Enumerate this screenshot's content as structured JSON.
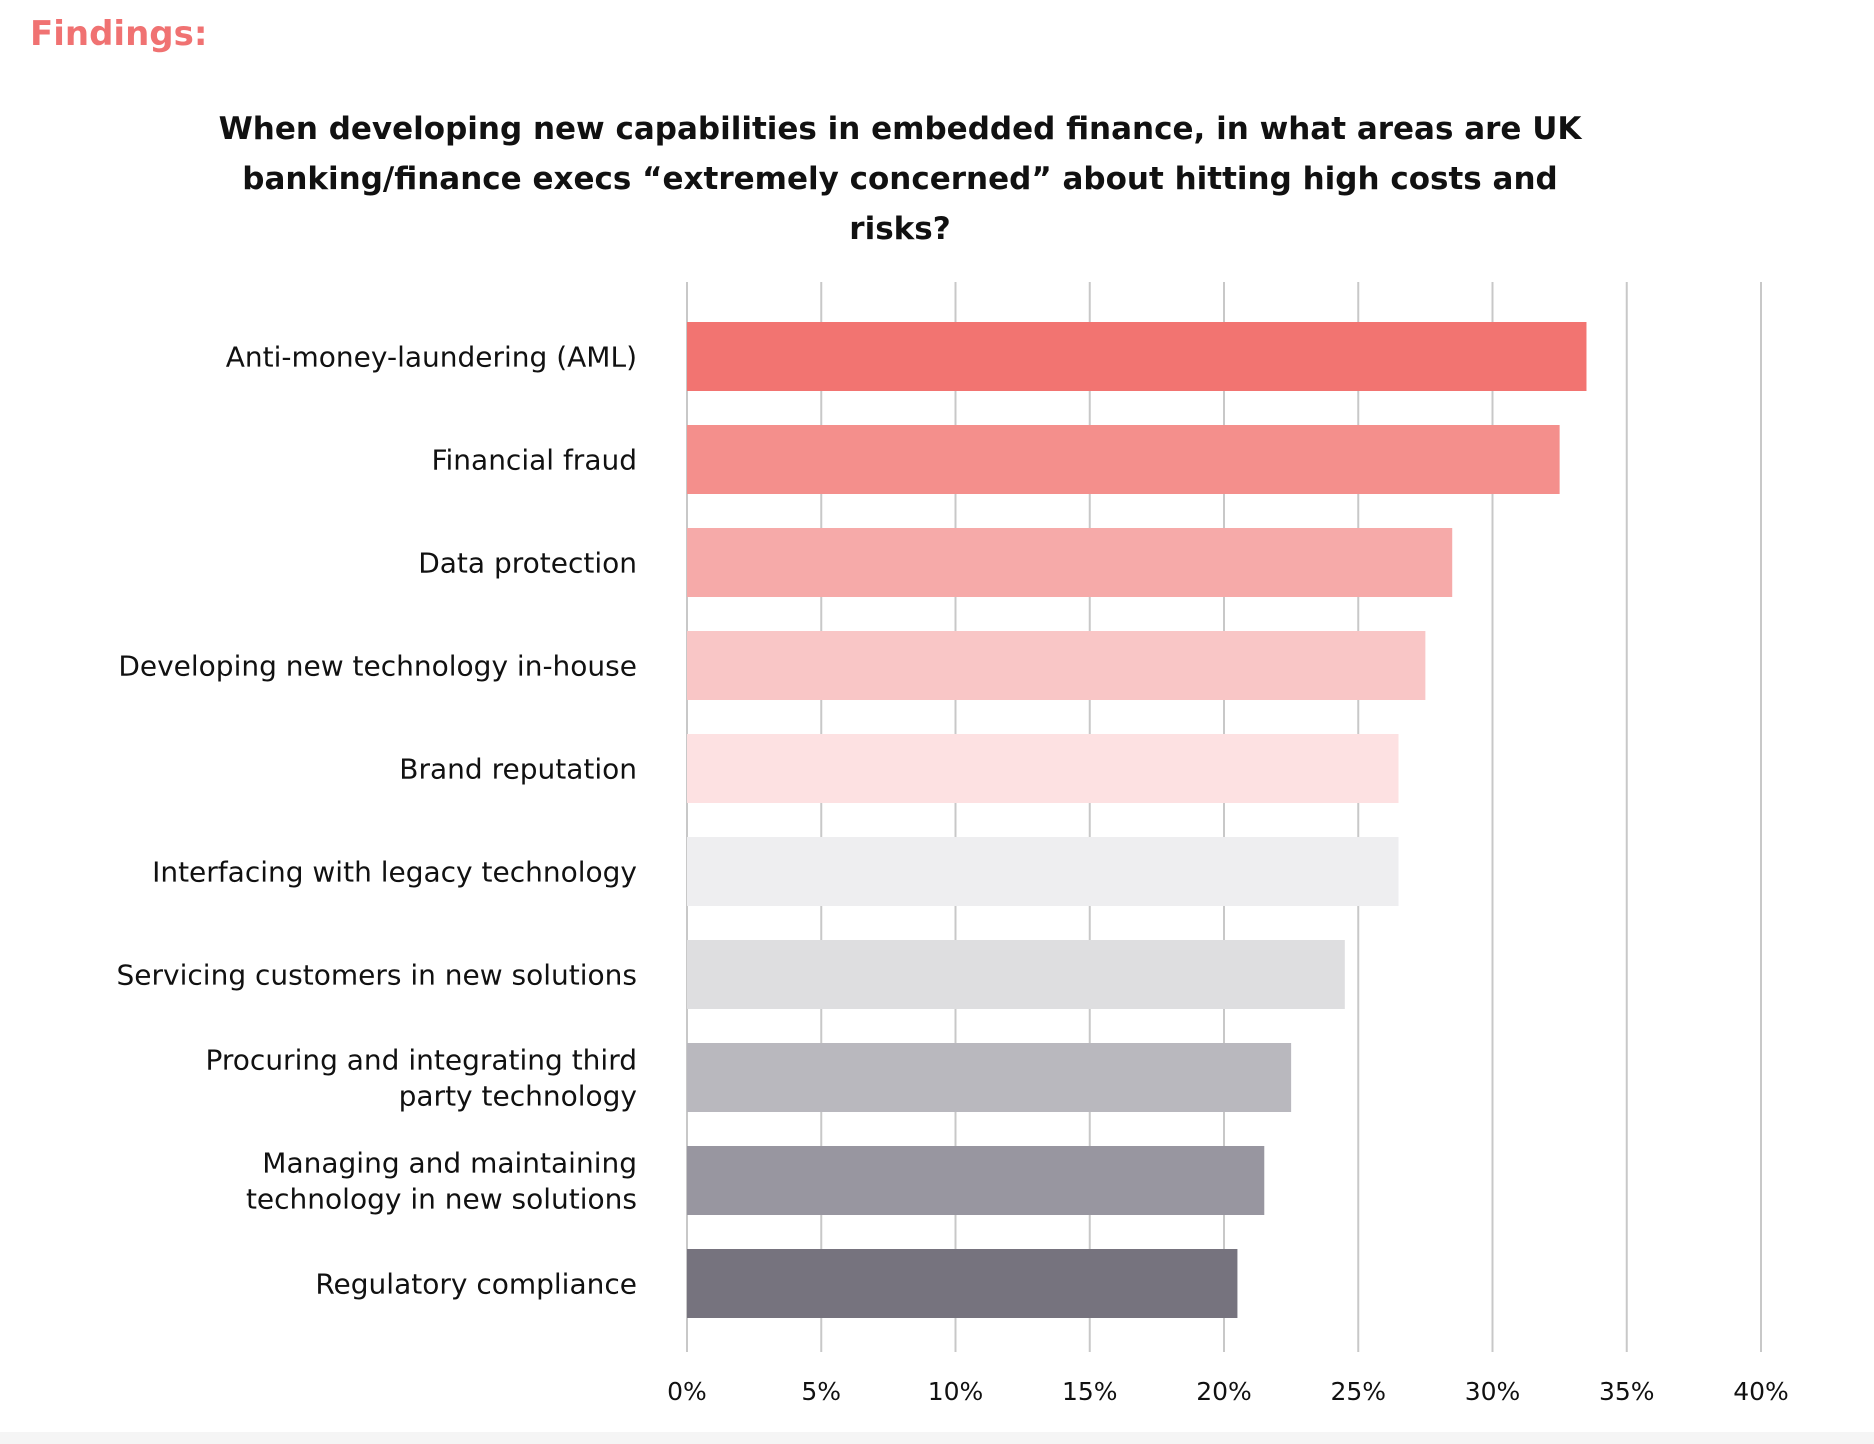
{
  "header": {
    "findings_label": "Findings:",
    "title_line1": "When developing new capabilities in embedded finance, in what areas are UK",
    "title_line2": "banking/finance execs “extremely concerned” about hitting high costs and risks?"
  },
  "chart_data": {
    "type": "bar",
    "orientation": "horizontal",
    "title": "When developing new capabilities in embedded finance, in what areas are UK banking/finance execs “extremely concerned” about hitting high costs and risks?",
    "categories": [
      [
        "Anti-money-laundering (AML)"
      ],
      [
        "Financial fraud"
      ],
      [
        "Data protection"
      ],
      [
        "Developing new technology in-house"
      ],
      [
        "Brand reputation"
      ],
      [
        "Interfacing with legacy technology"
      ],
      [
        "Servicing customers in new solutions"
      ],
      [
        "Procuring and integrating third",
        "party technology"
      ],
      [
        "Managing and maintaining",
        "technology in new solutions"
      ],
      [
        "Regulatory compliance"
      ]
    ],
    "values": [
      33.5,
      32.5,
      28.5,
      27.5,
      26.5,
      26.5,
      24.5,
      22.5,
      21.5,
      20.5
    ],
    "colors": [
      "#f27471",
      "#f48f8c",
      "#f6aaa9",
      "#f9c6c6",
      "#fde1e2",
      "#eeeef0",
      "#dedee0",
      "#b9b8be",
      "#9896a0",
      "#76737e"
    ],
    "xlim": [
      0,
      40
    ],
    "xticks": [
      0,
      5,
      10,
      15,
      20,
      25,
      30,
      35,
      40
    ],
    "xtick_labels": [
      "0%",
      "5%",
      "10%",
      "15%",
      "20%",
      "25%",
      "30%",
      "35%",
      "40%"
    ],
    "grid": "vertical",
    "gridline_color": "#c8c8c8",
    "xlabel": "",
    "ylabel": ""
  }
}
